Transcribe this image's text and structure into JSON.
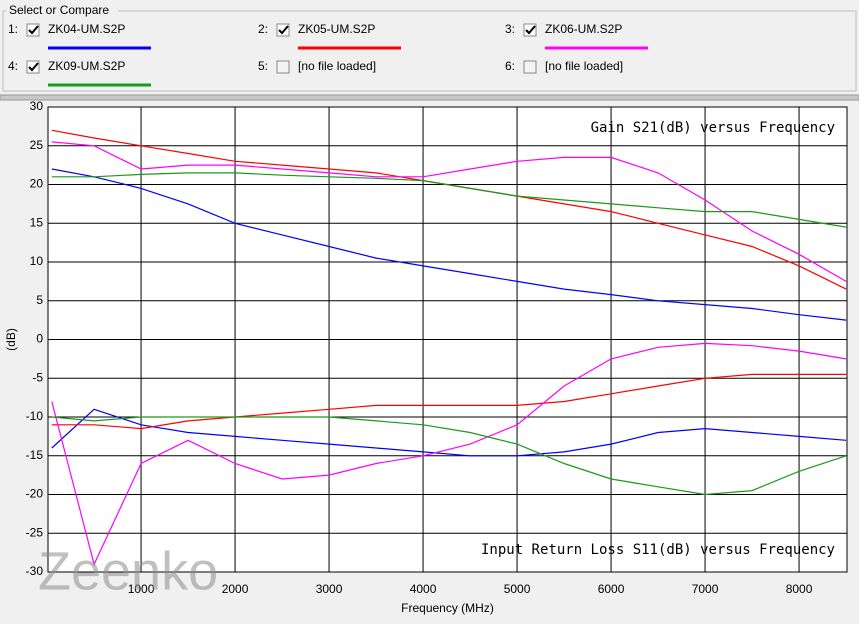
{
  "panel": {
    "title": "Select or Compare",
    "slots": [
      {
        "index": "1:",
        "checked": true
      },
      {
        "index": "2:",
        "checked": true
      },
      {
        "index": "3:",
        "checked": true
      },
      {
        "index": "4:",
        "checked": true
      },
      {
        "index": "5:",
        "checked": false,
        "label": "[no file loaded]"
      },
      {
        "index": "6:",
        "checked": false,
        "label": "[no file loaded]"
      }
    ]
  },
  "chart_data": {
    "type": "line",
    "annotations": [
      "Gain S21(dB) versus Frequency",
      "Input Return Loss S11(dB) versus Frequency"
    ],
    "watermark": "Zeenko",
    "xlabel": "Frequency (MHz)",
    "ylabel": "(dB)",
    "xlim": [
      10,
      8510
    ],
    "xticks": [
      1000,
      2000,
      3000,
      4000,
      5000,
      6000,
      7000,
      8000
    ],
    "ylim": [
      -30,
      30
    ],
    "yticks": [
      30,
      25,
      20,
      15,
      10,
      5,
      0,
      -5,
      -10,
      -15,
      -20,
      -25,
      -30
    ],
    "grid": true,
    "x": [
      50,
      500,
      1000,
      1500,
      2000,
      2500,
      3000,
      3500,
      4000,
      4500,
      5000,
      5500,
      6000,
      6500,
      7000,
      7500,
      8000,
      8500
    ],
    "series": [
      {
        "name": "ZK04-UM.S2P",
        "color": "#0000ff",
        "gain_values": [
          22,
          21,
          19.5,
          17.5,
          15,
          13.5,
          12,
          10.5,
          9.5,
          8.5,
          7.5,
          6.5,
          5.8,
          5,
          4.5,
          4,
          3.2,
          2.5
        ],
        "return_loss_values": [
          -14,
          -9,
          -11,
          -12,
          -12.5,
          -13,
          -13.5,
          -14,
          -14.5,
          -15,
          -15,
          -14.5,
          -13.5,
          -12,
          -11.5,
          -12,
          -12.5,
          -13
        ]
      },
      {
        "name": "ZK05-UM.S2P",
        "color": "#ff0000",
        "gain_values": [
          27,
          26,
          25,
          24,
          23,
          22.5,
          22,
          21.5,
          20.5,
          19.5,
          18.5,
          17.5,
          16.5,
          15,
          13.5,
          12,
          9.5,
          6.5
        ],
        "return_loss_values": [
          -11,
          -11,
          -11.5,
          -10.5,
          -10,
          -9.5,
          -9,
          -8.5,
          -8.5,
          -8.5,
          -8.5,
          -8,
          -7,
          -6,
          -5,
          -4.5,
          -4.5,
          -4.5
        ]
      },
      {
        "name": "ZK06-UM.S2P",
        "color": "#ff00ff",
        "gain_values": [
          25.5,
          25,
          22,
          22.5,
          22.5,
          22,
          21.5,
          21,
          21,
          22,
          23,
          23.5,
          23.5,
          21.5,
          18,
          14,
          11,
          7.5
        ],
        "return_loss_values": [
          -8,
          -29,
          -16,
          -13,
          -16,
          -18,
          -17.5,
          -16,
          -15,
          -13.5,
          -11,
          -6,
          -2.5,
          -1,
          -0.5,
          -0.8,
          -1.5,
          -2.5
        ]
      },
      {
        "name": "ZK09-UM.S2P",
        "color": "#1a9a1a",
        "gain_values": [
          21,
          21,
          21.3,
          21.5,
          21.5,
          21.2,
          21,
          20.8,
          20.5,
          19.5,
          18.5,
          18,
          17.5,
          17,
          16.5,
          16.5,
          15.5,
          14.5
        ],
        "return_loss_values": [
          -10,
          -10.5,
          -10,
          -10,
          -10,
          -10,
          -10,
          -10.5,
          -11,
          -12,
          -13.5,
          -16,
          -18,
          -19,
          -20,
          -19.5,
          -17,
          -15
        ]
      }
    ]
  }
}
